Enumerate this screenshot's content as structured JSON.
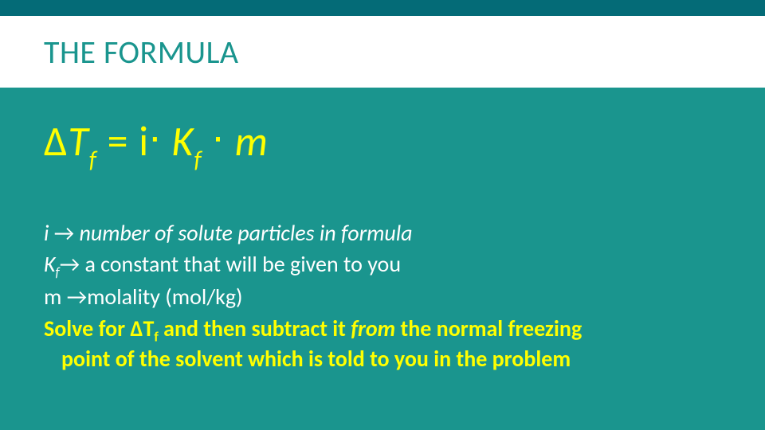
{
  "colors": {
    "background": "#1a958e",
    "top_bar": "#046b77",
    "title_bg": "#ffffff",
    "title_text": "#1a958e",
    "formula": "#ffff00",
    "body_text": "#ffffff",
    "solve_text": "#ffff00"
  },
  "title": "THE FORMULA",
  "formula": {
    "delta": "Δ",
    "T": "T",
    "f1": "f",
    "eq": " = i",
    "dot1": "∙",
    "K": " K",
    "f2": "f",
    "dot2": " ∙ ",
    "m": "m"
  },
  "defs": {
    "i_var": "i   ",
    "i_arrow": "→",
    "i_text": " number of solute particles in formula",
    "kf_K": "K",
    "kf_f": "f",
    "kf_arrow": "→",
    "kf_text": " a constant that will be given to you",
    "m_var": "m ",
    "m_arrow": "→",
    "m_text": "molality (mol/kg)"
  },
  "solve": {
    "p1": "Solve for ",
    "delta": "Δ",
    "T": "T",
    "f": "f",
    "p2": " and then subtract it ",
    "from": "from",
    "p3": " the normal freezing",
    "p4": "point of the solvent which is told to you in the problem"
  }
}
